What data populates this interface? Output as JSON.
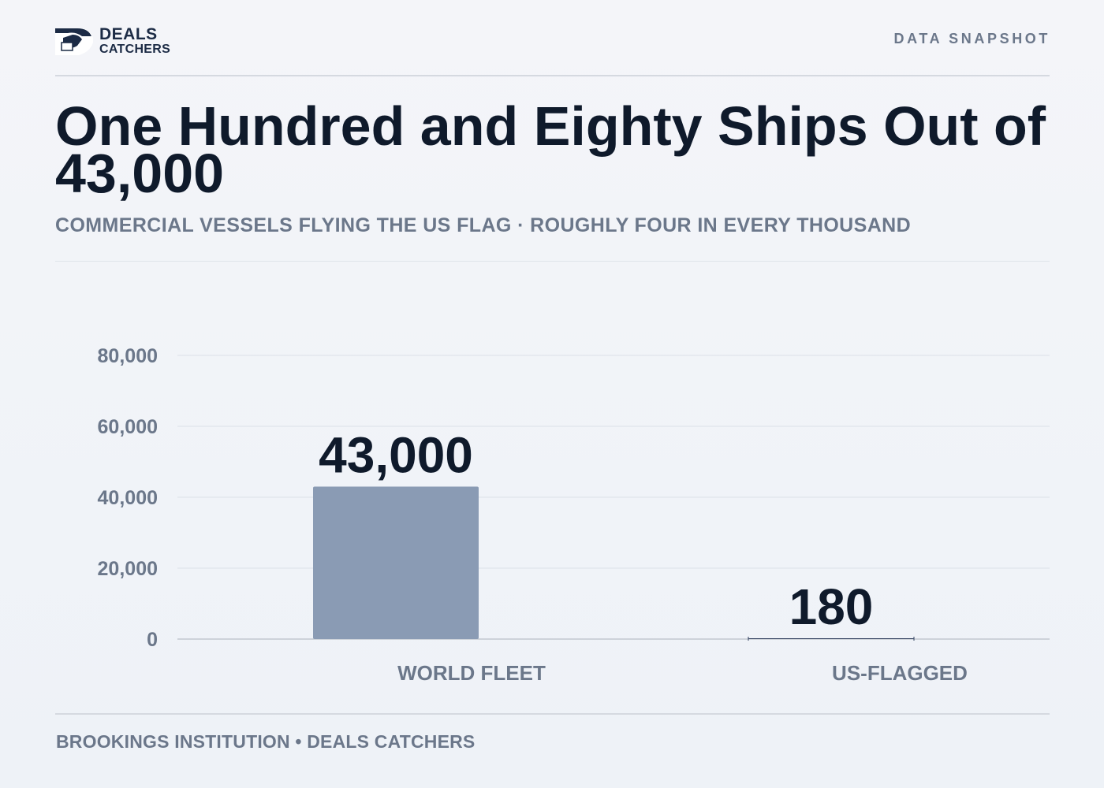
{
  "header": {
    "logo_line1": "DEALS",
    "logo_line2": "CATCHERS",
    "tag": "DATA SNAPSHOT"
  },
  "title": "One Hundred and Eighty Ships Out of 43,000",
  "subtitle": "COMMERCIAL VESSELS FLYING THE US FLAG · ROUGHLY FOUR IN EVERY THOUSAND",
  "footer": {
    "source": "BROOKINGS INSTITUTION • DEALS CATCHERS"
  },
  "colors": {
    "bar_world": "#8a9bb4",
    "bar_us": "#2e3d5c",
    "text_dark": "#0f1a2b",
    "text_muted": "#6b778a",
    "grid": "#e3e7ee"
  },
  "chart_data": {
    "type": "bar",
    "categories": [
      "WORLD FLEET",
      "US-FLAGGED"
    ],
    "values": [
      43000,
      180
    ],
    "value_labels": [
      "43,000",
      "180"
    ],
    "yticks": [
      0,
      20000,
      40000,
      60000,
      80000
    ],
    "ytick_labels": [
      "0",
      "20,000",
      "40,000",
      "60,000",
      "80,000"
    ],
    "ylim": [
      0,
      80000
    ],
    "grid": true,
    "title": "",
    "xlabel": "",
    "ylabel": ""
  }
}
